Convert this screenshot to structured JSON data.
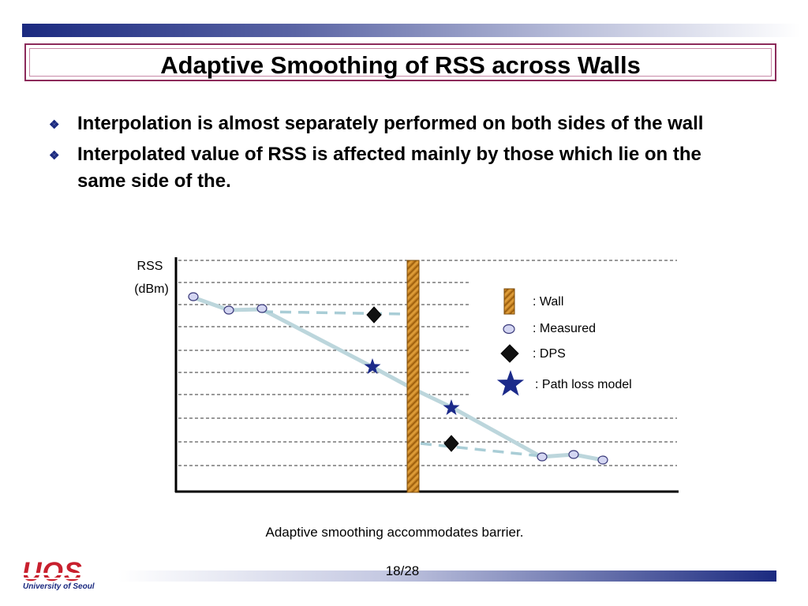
{
  "slide": {
    "title": "Adaptive Smoothing of RSS across Walls",
    "bullets": [
      "Interpolation is almost separately performed on both sides of the wall",
      "Interpolated value of RSS is affected mainly by those which lie on the same side of the."
    ],
    "caption": "Adaptive smoothing accommodates barrier.",
    "page_number": "18/28",
    "logo": {
      "main": "UOS",
      "sub": "University of Seoul"
    }
  },
  "diagram": {
    "y_axis_label_line1": "RSS",
    "y_axis_label_line2": "(dBm)",
    "legend": {
      "wall": ": Wall",
      "measured": ": Measured",
      "dps": ": DPS",
      "path_loss": ": Path loss model"
    },
    "colors": {
      "wall": "#c8861a",
      "measured_fill": "#d4d6f2",
      "measured_stroke": "#3a3a7a",
      "dps": "#111111",
      "path_loss": "#1b2a8a",
      "line": "#bcd6dc",
      "dashed_line": "#a9cdd6",
      "title_border": "#8c2a5a",
      "band": "#1b2a80"
    }
  }
}
